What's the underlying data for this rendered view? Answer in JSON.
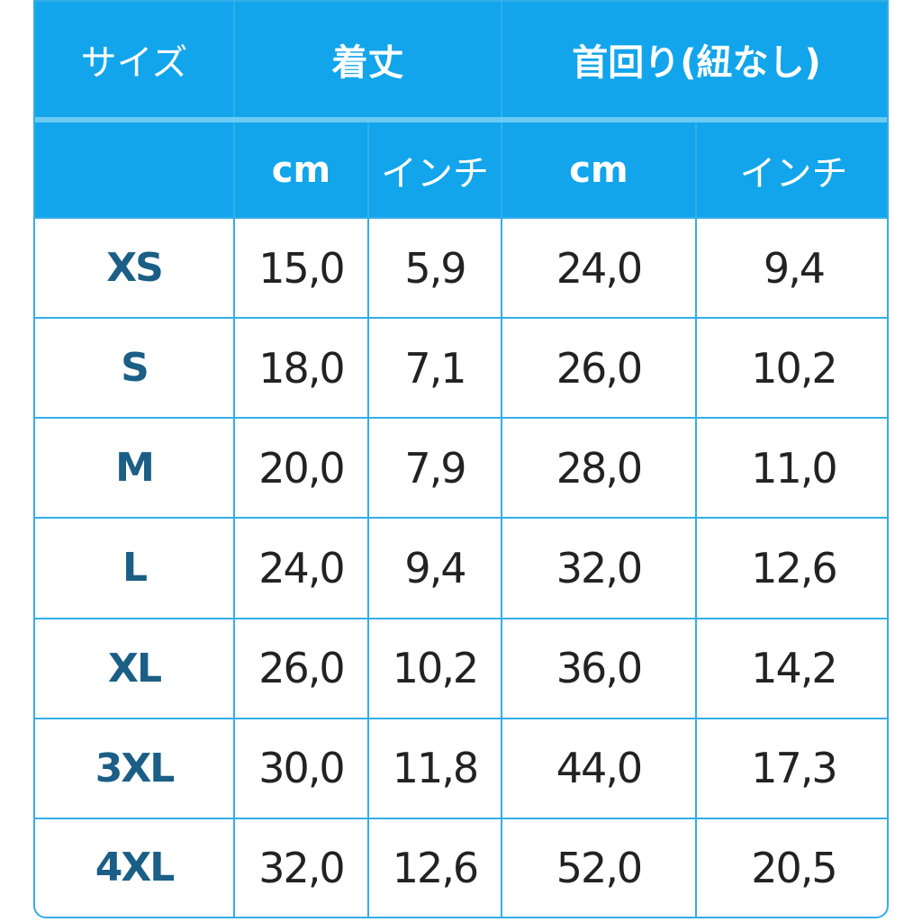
{
  "header": {
    "columns": [
      "サイズ",
      "着丈",
      "首回り(紐なし)"
    ],
    "units": [
      "cm",
      "インチ",
      "cm",
      "インチ"
    ]
  },
  "table": {
    "rows": [
      [
        "XS",
        "15,0",
        "5,9",
        "24,0",
        "9,4"
      ],
      [
        "S",
        "18,0",
        "7,1",
        "26,0",
        "10,2"
      ],
      [
        "M",
        "20,0",
        "7,9",
        "28,0",
        "11,0"
      ],
      [
        "L",
        "24,0",
        "9,4",
        "32,0",
        "12,6"
      ],
      [
        "XL",
        "26,0",
        "10,2",
        "36,0",
        "14,2"
      ],
      [
        "3XL",
        "30,0",
        "11,8",
        "44,0",
        "17,3"
      ],
      [
        "4XL",
        "32,0",
        "12,6",
        "52,0",
        "20,5"
      ]
    ]
  }
}
